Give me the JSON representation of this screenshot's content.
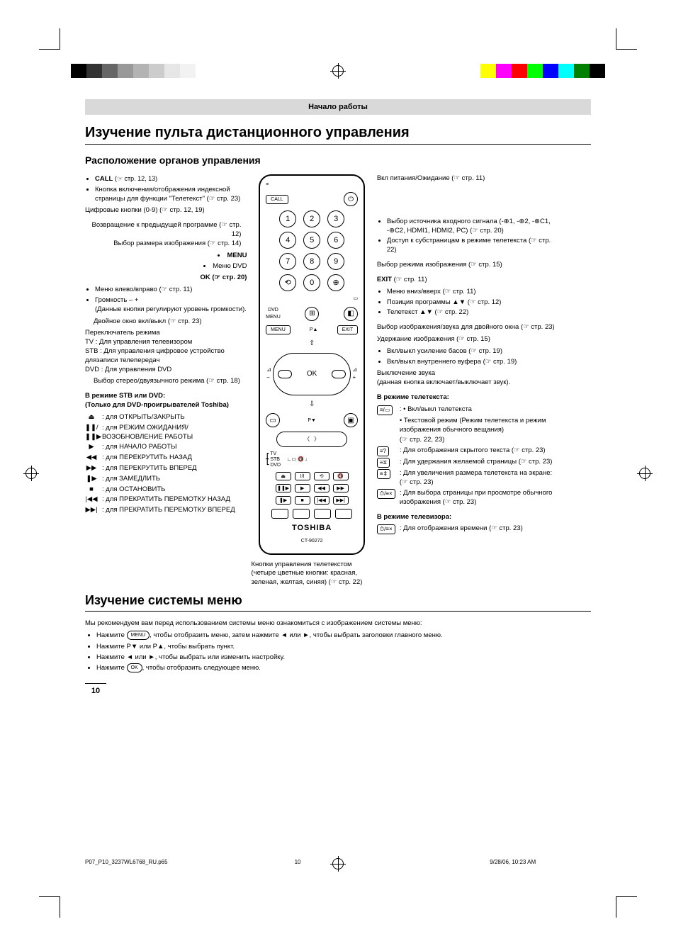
{
  "print": {
    "color_swatches_left": [
      "#000000",
      "#333333",
      "#666666",
      "#999999",
      "#b3b3b3",
      "#cccccc",
      "#e6e6e6",
      "#f2f2f2"
    ],
    "color_swatches_right": [
      "#ffff00",
      "#ff00ff",
      "#ff0000",
      "#00ff00",
      "#0000ff",
      "#00ffff",
      "#008000",
      "#000000"
    ]
  },
  "header": {
    "section": "Начало работы"
  },
  "titles": {
    "main": "Изучение пульта дистанционного управления",
    "sub": "Расположение органов управления",
    "menu": "Изучение системы меню"
  },
  "left": {
    "call": {
      "label": "CALL",
      "ref": "(☞ стр. 12, 13)"
    },
    "call_desc": "Кнопка включения/отображения индексной страницы для функции \"Телетекст\" (☞ стр. 23)",
    "digits": "Цифровые кнопки (0-9) (☞ стр. 12, 19)",
    "returnprev": "Возвращение к предыдущей программе (☞ стр. 12)",
    "picturesize": "Выбор размера изображения (☞ стр. 14)",
    "menu": "MENU",
    "dvdmenu": "Меню DVD",
    "ok": "OK (☞ стр. 20)",
    "menulr": "Меню влево/вправо (☞ стр. 11)",
    "volume": "Громкость – +",
    "volume_desc": "(Данные кнопки регулируют уровень громкости).",
    "twin": "Двойное окно вкл/выкл  (☞ стр. 23)",
    "modeswitch": "Переключатель режима",
    "modes": [
      "TV :  Для управления телевизором",
      "STB :  Для управления цифровое устройство длязаписи телепередач",
      "DVD : Для управления DVD"
    ],
    "stereo": "Выбор стерео/двуязычного режима (☞ стр. 18)",
    "stbdvd_title": "В режиме STB или DVD:",
    "stbdvd_sub": "(Только для DVD-проигрывателей Toshiba)",
    "dvd_controls": [
      {
        "g": "⏏",
        "t": ": для ОТКРЫТЬ/ЗАКРЫТЬ"
      },
      {
        "g": "❚❚/❚❚▶",
        "t": ": для РЕЖИМ ОЖИДАНИЯ/ВОЗОБНОВЛЕНИЕ РАБОТЫ"
      },
      {
        "g": "▶",
        "t": ": для НАЧАЛО РАБОТЫ"
      },
      {
        "g": "◀◀",
        "t": ": для ПЕРЕКРУТИТЬ НАЗАД"
      },
      {
        "g": "▶▶",
        "t": ": для ПЕРЕКРУТИТЬ ВПЕРЕД"
      },
      {
        "g": "❚▶",
        "t": ": для ЗАМЕДЛИТЬ"
      },
      {
        "g": "■",
        "t": ": для ОСТАНОВИТЬ"
      },
      {
        "g": "|◀◀",
        "t": ": для ПРЕКРАТИТЬ ПЕРЕМОТКУ НАЗАД"
      },
      {
        "g": "▶▶|",
        "t": ": для ПРЕКРАТИТЬ ПЕРЕМОТКУ ВПЕРЕД"
      }
    ]
  },
  "mid": {
    "call": "CALL",
    "dvdmenu": "DVD\nMENU",
    "menu": "MENU",
    "exit": "EXIT",
    "ok": "OK",
    "brand": "TOSHIBA",
    "model": "CT-90272",
    "switch_tv": "TV",
    "switch_stb": "STB",
    "switch_dvd": "DVD",
    "teletext_note": "Кнопки управления телетекстом (четыре цветные кнопки: красная, зеленая, желтая, синяя) (☞ стр. 22)",
    "p_up": "P▲",
    "p_dn": "P▼"
  },
  "right": {
    "power": "Вкл питания/Ожидание (☞ стр. 11)",
    "input_items": [
      "Выбор источника входного сигнала (-⊕1, -⊕2, -⊕C1, -⊕C2, HDMI1, HDMI2, PC) (☞ стр. 20)",
      "Доступ к субстраницам в режиме телетекста (☞ стр. 22)"
    ],
    "picmode": "Выбор режима изображения (☞ стр. 15)",
    "exit": "EXIT (☞ стр. 11)",
    "exit_items": [
      "Меню вниз/вверх (☞ стр. 11)",
      "Позиция программы ▲▼  (☞ стр. 12)",
      "Телетекст ▲▼ (☞ стр. 22)"
    ],
    "twinwin": "Выбор изображения/звука для двойного окна (☞ стр. 23)",
    "hold": "Удержание изображения (☞ стр. 15)",
    "bass_items": [
      "Вкл/выкл усиление басов (☞ стр. 19)",
      "Вкл/выкл внутреннего вуфера (☞ стр. 19)"
    ],
    "mute": "Выключение звука",
    "mute_desc": "(данная кнопка включает/выключает звук).",
    "tele_title": "В режиме телетекста:",
    "tele_items": [
      {
        "g": "≡/▭",
        "t": ": • Вкл/выкл телетекста"
      },
      {
        "g": "",
        "t": "• Текстовой режим (Режим телетекста и режим изображения обычного вещания)"
      },
      {
        "g": "",
        "t": "(☞ стр. 22, 23)"
      },
      {
        "g": "≡?",
        "t": ": Для отображения скрытого текста (☞ стр. 23)"
      },
      {
        "g": "≡⧖",
        "t": ": Для удержания желаемой страницы (☞ стр. 23)"
      },
      {
        "g": "≡⇕",
        "t": ": Для увеличения размера телетекста на экране: (☞ стр. 23)"
      },
      {
        "g": "⏱/≡×",
        "t": ": Для выбора страницы при просмотре обычного изображения (☞ стр. 23)"
      }
    ],
    "tvmode_title": "В режиме телевизора:",
    "tvmode_item": {
      "g": "⏱/≡×",
      "t": ": Для отображения времени (☞ стр. 23)"
    }
  },
  "menu_system": {
    "intro": "Мы рекомендуем вам перед использованием системы меню ознакомиться с изображением системы меню:",
    "steps": [
      "Нажмите (MENU), чтобы отобразить меню, затем нажмите ◄ или ►, чтобы выбрать заголовки главного меню.",
      "Нажмите P▼ или P▲, чтобы выбрать пункт.",
      "Нажмите ◄ или ►, чтобы выбрать или изменить настройку.",
      "Нажмите (OK), чтобы отобразить следующее меню."
    ]
  },
  "page_number": "10",
  "footer": {
    "file": "P07_P10_3237WL6768_RU.p65",
    "page": "10",
    "timestamp": "9/28/06, 10:23 AM"
  }
}
